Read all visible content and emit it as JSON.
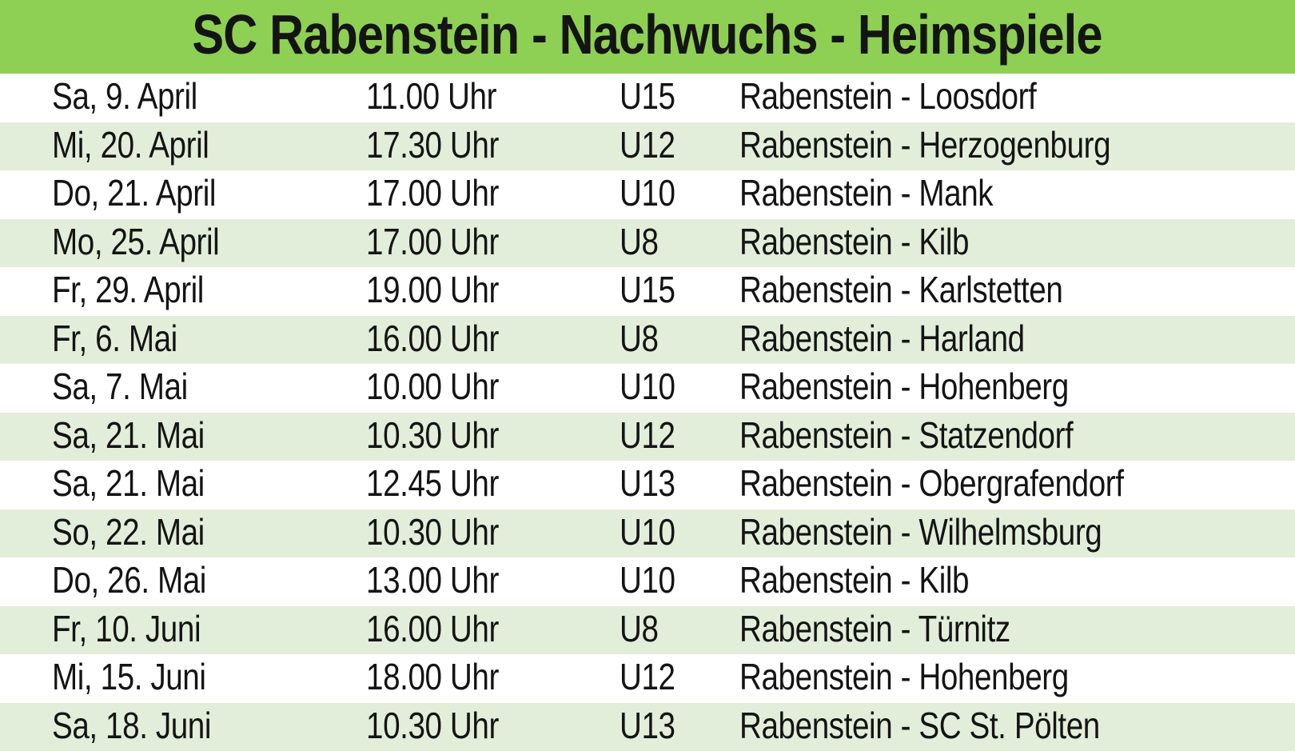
{
  "title": "SC Rabenstein - Nachwuchs - Heimspiele",
  "colors": {
    "header_green": "#8ED053",
    "row_alt_green": "#E2EEDA",
    "row_white": "#FFFFFF",
    "text": "#141414"
  },
  "table": {
    "columns": [
      "date",
      "time",
      "team",
      "match"
    ],
    "rows": [
      {
        "date": "Sa, 9. April",
        "time": "11.00 Uhr",
        "team": "U15",
        "match": "Rabenstein - Loosdorf"
      },
      {
        "date": "Mi, 20. April",
        "time": "17.30 Uhr",
        "team": "U12",
        "match": "Rabenstein - Herzogenburg"
      },
      {
        "date": "Do, 21. April",
        "time": "17.00 Uhr",
        "team": "U10",
        "match": "Rabenstein - Mank"
      },
      {
        "date": "Mo, 25. April",
        "time": "17.00 Uhr",
        "team": "U8",
        "match": "Rabenstein - Kilb"
      },
      {
        "date": "Fr, 29. April",
        "time": "19.00 Uhr",
        "team": "U15",
        "match": "Rabenstein - Karlstetten"
      },
      {
        "date": "Fr, 6. Mai",
        "time": "16.00 Uhr",
        "team": "U8",
        "match": "Rabenstein - Harland"
      },
      {
        "date": "Sa, 7. Mai",
        "time": "10.00 Uhr",
        "team": "U10",
        "match": "Rabenstein - Hohenberg"
      },
      {
        "date": "Sa, 21. Mai",
        "time": "10.30 Uhr",
        "team": "U12",
        "match": "Rabenstein - Statzendorf"
      },
      {
        "date": "Sa, 21. Mai",
        "time": "12.45 Uhr",
        "team": "U13",
        "match": "Rabenstein - Obergrafendorf"
      },
      {
        "date": "So, 22. Mai",
        "time": "10.30 Uhr",
        "team": "U10",
        "match": "Rabenstein - Wilhelmsburg"
      },
      {
        "date": "Do, 26. Mai",
        "time": "13.00 Uhr",
        "team": "U10",
        "match": "Rabenstein - Kilb"
      },
      {
        "date": "Fr, 10. Juni",
        "time": "16.00 Uhr",
        "team": "U8",
        "match": "Rabenstein - Türnitz"
      },
      {
        "date": "Mi, 15. Juni",
        "time": "18.00 Uhr",
        "team": "U12",
        "match": "Rabenstein - Hohenberg"
      },
      {
        "date": "Sa, 18. Juni",
        "time": "10.30 Uhr",
        "team": "U13",
        "match": "Rabenstein - SC St. Pölten"
      }
    ]
  }
}
